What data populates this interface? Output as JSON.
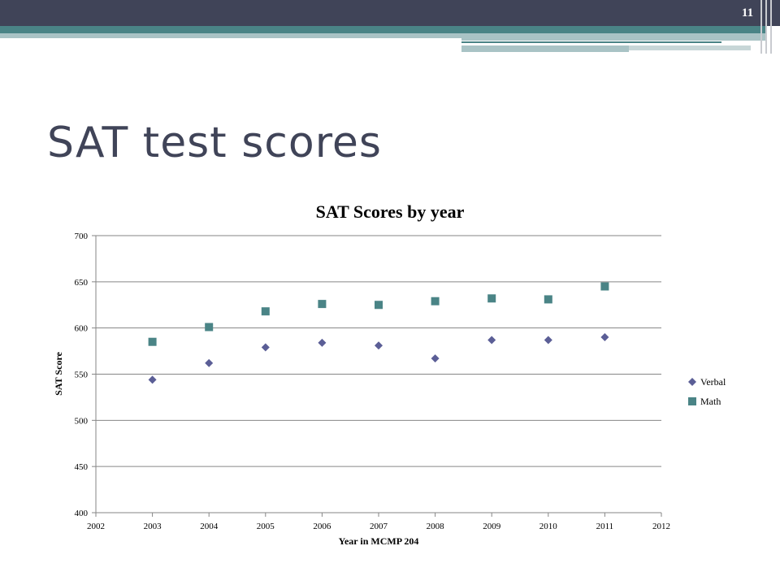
{
  "slide": {
    "title": "SAT test scores",
    "page_number": "11"
  },
  "colors": {
    "header_bar": "#404458",
    "accent_teal": "#4a8486",
    "accent_light": "#a9c3c5",
    "verbal_marker": "#5b5e96",
    "math_marker": "#4a8486",
    "grid": "#868686"
  },
  "chart_data": {
    "type": "scatter",
    "title": "SAT Scores by year",
    "xlabel": "Year in MCMP 204",
    "ylabel": "SAT Score",
    "xlim": [
      2002,
      2012
    ],
    "ylim": [
      400,
      700
    ],
    "xticks": [
      2002,
      2003,
      2004,
      2005,
      2006,
      2007,
      2008,
      2009,
      2010,
      2011,
      2012
    ],
    "yticks": [
      400,
      450,
      500,
      550,
      600,
      650,
      700
    ],
    "grid": "horizontal",
    "legend_position": "right",
    "series": [
      {
        "name": "Verbal",
        "marker": "diamond",
        "points": [
          {
            "x": 2003,
            "y": 544
          },
          {
            "x": 2004,
            "y": 562
          },
          {
            "x": 2005,
            "y": 579
          },
          {
            "x": 2006,
            "y": 584
          },
          {
            "x": 2007,
            "y": 581
          },
          {
            "x": 2008,
            "y": 567
          },
          {
            "x": 2009,
            "y": 587
          },
          {
            "x": 2010,
            "y": 587
          },
          {
            "x": 2011,
            "y": 590
          }
        ]
      },
      {
        "name": "Math",
        "marker": "square",
        "points": [
          {
            "x": 2003,
            "y": 585
          },
          {
            "x": 2004,
            "y": 601
          },
          {
            "x": 2005,
            "y": 618
          },
          {
            "x": 2006,
            "y": 626
          },
          {
            "x": 2007,
            "y": 625
          },
          {
            "x": 2008,
            "y": 629
          },
          {
            "x": 2009,
            "y": 632
          },
          {
            "x": 2010,
            "y": 631
          },
          {
            "x": 2011,
            "y": 645
          }
        ]
      }
    ]
  }
}
